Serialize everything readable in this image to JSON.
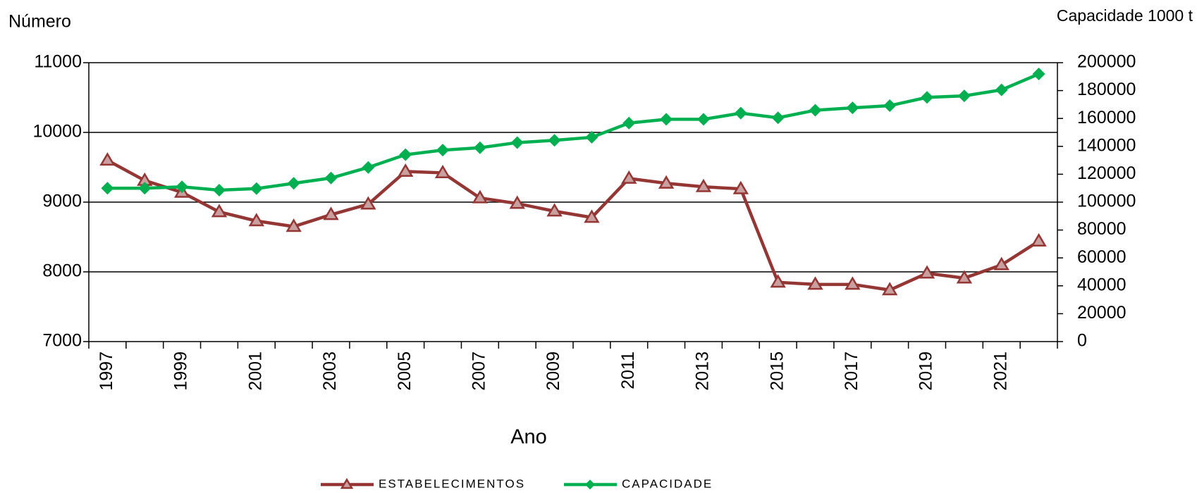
{
  "chart_data": {
    "type": "line",
    "y_label": "Número",
    "y2_label": "Capacidade 1000 t",
    "x_label": "Ano",
    "categories": [
      "1997",
      null,
      "1999",
      null,
      "2001",
      null,
      "2003",
      null,
      "2005",
      null,
      "2007",
      null,
      "2009",
      null,
      "2011",
      null,
      "2013",
      null,
      "2015",
      null,
      "2017",
      null,
      "2019",
      null,
      "2021",
      null
    ],
    "series": [
      {
        "name": "ESTABELECIMENTOS",
        "color": "#943634",
        "marker": "triangle",
        "values": [
          9600,
          9310,
          9140,
          8860,
          8730,
          8650,
          8820,
          8970,
          9440,
          9420,
          9060,
          8980,
          8870,
          8780,
          9340,
          9270,
          9220,
          9190,
          7850,
          7820,
          7820,
          7740,
          7980,
          7910,
          8100,
          8440
        ]
      },
      {
        "name": "CAPACIDADE",
        "color": "#00b050",
        "marker": "diamond",
        "axis": "y2",
        "values": [
          110000,
          110000,
          111000,
          108600,
          109700,
          113500,
          117300,
          124900,
          134000,
          137300,
          139000,
          142700,
          144300,
          146500,
          156700,
          159400,
          159400,
          163800,
          160500,
          165900,
          167600,
          169200,
          175100,
          176200,
          180500,
          191900
        ]
      }
    ],
    "ylim": [
      7000,
      11000
    ],
    "yticks": [
      7000,
      8000,
      9000,
      10000,
      11000
    ],
    "y2lim": [
      0,
      200000
    ],
    "y2ticks": [
      0,
      20000,
      40000,
      60000,
      80000,
      100000,
      120000,
      140000,
      160000,
      180000,
      200000
    ],
    "grid": true,
    "legend": "bottom"
  }
}
